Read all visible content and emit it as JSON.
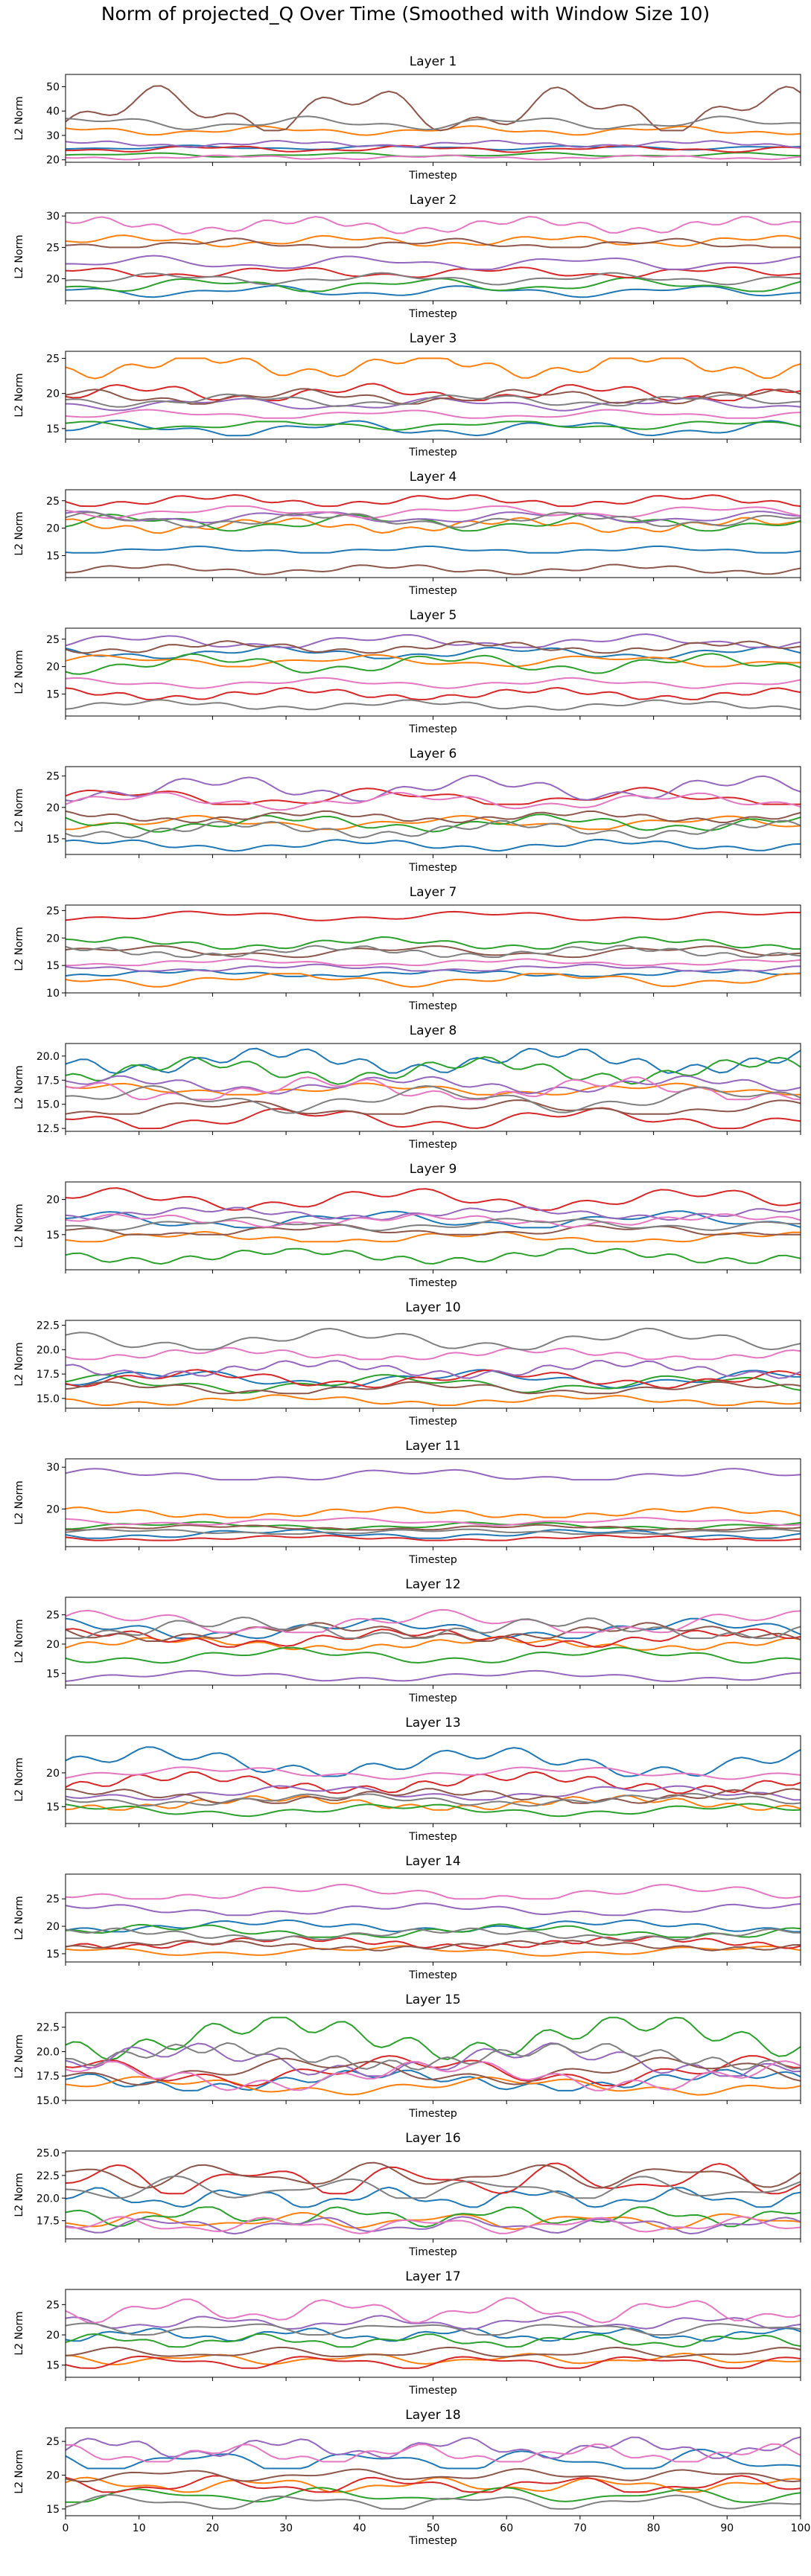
{
  "figure": {
    "title": "Norm of projected_Q Over Time (Smoothed with Window Size 10)"
  },
  "palette": [
    "#1f77b4",
    "#ff7f0e",
    "#2ca02c",
    "#d62728",
    "#9467bd",
    "#8c564b",
    "#e377c2",
    "#7f7f7f"
  ],
  "chart_data": [
    {
      "type": "line",
      "title": "Layer 1",
      "xlabel": "Timestep",
      "ylabel": "L2 Norm",
      "xlim": [
        0,
        100
      ],
      "ylim": [
        19,
        55
      ],
      "yticks": [
        20,
        30,
        40,
        50
      ],
      "xticks": [
        0,
        10,
        20,
        30,
        40,
        50,
        60,
        70,
        80,
        90,
        100
      ],
      "show_xticklabels": false,
      "series_levels": [
        25.0,
        32.0,
        22.0,
        24.5,
        26.5,
        40.0,
        21.0,
        35.0
      ],
      "series_ranges": [
        [
          24,
          26
        ],
        [
          30,
          34
        ],
        [
          21,
          23
        ],
        [
          23,
          26
        ],
        [
          25,
          28
        ],
        [
          32,
          54
        ],
        [
          20,
          22
        ],
        [
          32,
          38
        ]
      ]
    },
    {
      "type": "line",
      "title": "Layer 2",
      "xlabel": "Timestep",
      "ylabel": "L2 Norm",
      "xlim": [
        0,
        100
      ],
      "ylim": [
        16.5,
        30.5
      ],
      "yticks": [
        20,
        25,
        30
      ],
      "xticks": [
        0,
        10,
        20,
        30,
        40,
        50,
        60,
        70,
        80,
        90,
        100
      ],
      "show_xticklabels": false,
      "series_levels": [
        18.0,
        26.0,
        19.0,
        21.0,
        22.5,
        25.5,
        28.5,
        20.0
      ],
      "series_ranges": [
        [
          17,
          19
        ],
        [
          25,
          27
        ],
        [
          18,
          20.5
        ],
        [
          20,
          22
        ],
        [
          21.5,
          24
        ],
        [
          25,
          27
        ],
        [
          27,
          30
        ],
        [
          19,
          21
        ]
      ]
    },
    {
      "type": "line",
      "title": "Layer 3",
      "xlabel": "Timestep",
      "ylabel": "L2 Norm",
      "xlim": [
        0,
        100
      ],
      "ylim": [
        13.5,
        26
      ],
      "yticks": [
        15,
        20,
        25
      ],
      "xticks": [
        0,
        10,
        20,
        30,
        40,
        50,
        60,
        70,
        80,
        90,
        100
      ],
      "show_xticklabels": false,
      "series_levels": [
        15.0,
        24.0,
        15.5,
        20.0,
        18.5,
        19.5,
        17.0,
        19.0
      ],
      "series_ranges": [
        [
          14,
          16.5
        ],
        [
          21,
          25
        ],
        [
          14.5,
          16
        ],
        [
          19,
          22
        ],
        [
          17.5,
          19.5
        ],
        [
          18.5,
          21
        ],
        [
          16.5,
          18
        ],
        [
          18,
          20
        ]
      ]
    },
    {
      "type": "line",
      "title": "Layer 4",
      "xlabel": "Timestep",
      "ylabel": "L2 Norm",
      "xlim": [
        0,
        100
      ],
      "ylim": [
        11,
        27
      ],
      "yticks": [
        15,
        20,
        25
      ],
      "xticks": [
        0,
        10,
        20,
        30,
        40,
        50,
        60,
        70,
        80,
        90,
        100
      ],
      "show_xticklabels": false,
      "series_levels": [
        16.0,
        20.5,
        21.0,
        25.0,
        22.0,
        12.5,
        23.0,
        21.5
      ],
      "series_ranges": [
        [
          15.5,
          17
        ],
        [
          19,
          22
        ],
        [
          19.5,
          23
        ],
        [
          24,
          26.5
        ],
        [
          21,
          23.5
        ],
        [
          11.5,
          13.5
        ],
        [
          21.5,
          24
        ],
        [
          20,
          23
        ]
      ]
    },
    {
      "type": "line",
      "title": "Layer 5",
      "xlabel": "Timestep",
      "ylabel": "L2 Norm",
      "xlim": [
        0,
        100
      ],
      "ylim": [
        11,
        27
      ],
      "yticks": [
        15,
        20,
        25
      ],
      "xticks": [
        0,
        10,
        20,
        30,
        40,
        50,
        60,
        70,
        80,
        90,
        100
      ],
      "show_xticklabels": false,
      "series_levels": [
        22.5,
        21.0,
        20.5,
        15.0,
        24.5,
        23.5,
        17.0,
        13.0
      ],
      "series_ranges": [
        [
          21.5,
          24
        ],
        [
          20,
          22.5
        ],
        [
          18.5,
          22.5
        ],
        [
          14,
          16.5
        ],
        [
          23.5,
          26.5
        ],
        [
          22.5,
          25
        ],
        [
          16,
          18
        ],
        [
          12,
          14
        ]
      ]
    },
    {
      "type": "line",
      "title": "Layer 6",
      "xlabel": "Timestep",
      "ylabel": "L2 Norm",
      "xlim": [
        0,
        100
      ],
      "ylim": [
        12.5,
        26.5
      ],
      "yticks": [
        15,
        20,
        25
      ],
      "xticks": [
        0,
        10,
        20,
        30,
        40,
        50,
        60,
        70,
        80,
        90,
        100
      ],
      "show_xticklabels": false,
      "series_levels": [
        14.0,
        17.5,
        17.5,
        21.5,
        23.0,
        18.5,
        21.0,
        16.5
      ],
      "series_ranges": [
        [
          13,
          15
        ],
        [
          16.5,
          19
        ],
        [
          16,
          19
        ],
        [
          20.5,
          24
        ],
        [
          21,
          25.5
        ],
        [
          17.5,
          19.5
        ],
        [
          19.5,
          22.5
        ],
        [
          15,
          18
        ]
      ]
    },
    {
      "type": "line",
      "title": "Layer 7",
      "xlabel": "Timestep",
      "ylabel": "L2 Norm",
      "xlim": [
        0,
        100
      ],
      "ylim": [
        10,
        26
      ],
      "yticks": [
        10,
        15,
        20,
        25
      ],
      "xticks": [
        0,
        10,
        20,
        30,
        40,
        50,
        60,
        70,
        80,
        90,
        100
      ],
      "show_xticklabels": false,
      "series_levels": [
        13.5,
        12.5,
        19.0,
        24.0,
        14.5,
        17.5,
        15.5,
        17.5
      ],
      "series_ranges": [
        [
          13,
          14.5
        ],
        [
          10.5,
          13.5
        ],
        [
          18,
          20.5
        ],
        [
          23,
          25
        ],
        [
          14,
          15.5
        ],
        [
          16.5,
          19
        ],
        [
          15,
          16.5
        ],
        [
          16.5,
          19
        ]
      ]
    },
    {
      "type": "line",
      "title": "Layer 8",
      "xlabel": "Timestep",
      "ylabel": "L2 Norm",
      "xlim": [
        0,
        100
      ],
      "ylim": [
        12.2,
        21.3
      ],
      "yticks": [
        12.5,
        15.0,
        17.5,
        20.0
      ],
      "xticks": [
        0,
        10,
        20,
        30,
        40,
        50,
        60,
        70,
        80,
        90,
        100
      ],
      "show_xticklabels": false,
      "series_levels": [
        19.5,
        16.5,
        18.5,
        13.5,
        17.0,
        14.5,
        16.5,
        15.5
      ],
      "series_ranges": [
        [
          18,
          21
        ],
        [
          16,
          17.5
        ],
        [
          17,
          20
        ],
        [
          12.5,
          15
        ],
        [
          16,
          18
        ],
        [
          14,
          16
        ],
        [
          15.5,
          18.5
        ],
        [
          14,
          17
        ]
      ]
    },
    {
      "type": "line",
      "title": "Layer 9",
      "xlabel": "Timestep",
      "ylabel": "L2 Norm",
      "xlim": [
        0,
        100
      ],
      "ylim": [
        10,
        22.5
      ],
      "yticks": [
        15,
        20
      ],
      "xticks": [
        0,
        10,
        20,
        30,
        40,
        50,
        60,
        70,
        80,
        90,
        100
      ],
      "show_xticklabels": false,
      "series_levels": [
        17.0,
        14.5,
        12.0,
        20.0,
        18.0,
        15.5,
        17.0,
        16.5
      ],
      "series_ranges": [
        [
          16,
          19
        ],
        [
          14,
          16
        ],
        [
          10.5,
          13
        ],
        [
          18.5,
          22
        ],
        [
          17,
          19
        ],
        [
          15,
          17
        ],
        [
          16,
          18
        ],
        [
          15.5,
          17.5
        ]
      ]
    },
    {
      "type": "line",
      "title": "Layer 10",
      "xlabel": "Timestep",
      "ylabel": "L2 Norm",
      "xlim": [
        0,
        100
      ],
      "ylim": [
        14,
        23
      ],
      "yticks": [
        15.0,
        17.5,
        20.0,
        22.5
      ],
      "xticks": [
        0,
        10,
        20,
        30,
        40,
        50,
        60,
        70,
        80,
        90,
        100
      ],
      "show_xticklabels": false,
      "series_levels": [
        17.0,
        14.8,
        16.5,
        17.0,
        18.0,
        16.0,
        19.5,
        21.0
      ],
      "series_ranges": [
        [
          16,
          18
        ],
        [
          14.3,
          15.5
        ],
        [
          15.5,
          17.5
        ],
        [
          16,
          18
        ],
        [
          17,
          19
        ],
        [
          15.5,
          17
        ],
        [
          19,
          20.5
        ],
        [
          20,
          22.5
        ]
      ]
    },
    {
      "type": "line",
      "title": "Layer 11",
      "xlabel": "Timestep",
      "ylabel": "L2 Norm",
      "xlim": [
        0,
        100
      ],
      "ylim": [
        11,
        32
      ],
      "yticks": [
        20,
        30
      ],
      "xticks": [
        0,
        10,
        20,
        30,
        40,
        50,
        60,
        70,
        80,
        90,
        100
      ],
      "show_xticklabels": false,
      "series_levels": [
        14.0,
        19.0,
        16.0,
        13.0,
        28.0,
        15.5,
        17.0,
        14.5
      ],
      "series_ranges": [
        [
          13,
          15.5
        ],
        [
          18,
          21
        ],
        [
          15,
          17
        ],
        [
          12.5,
          14
        ],
        [
          27,
          30.5
        ],
        [
          15,
          16.5
        ],
        [
          16,
          18
        ],
        [
          14,
          15.5
        ]
      ]
    },
    {
      "type": "line",
      "title": "Layer 12",
      "xlabel": "Timestep",
      "ylabel": "L2 Norm",
      "xlim": [
        0,
        100
      ],
      "ylim": [
        13,
        28
      ],
      "yticks": [
        15,
        20,
        25
      ],
      "xticks": [
        0,
        10,
        20,
        30,
        40,
        50,
        60,
        70,
        80,
        90,
        100
      ],
      "show_xticklabels": false,
      "series_levels": [
        22.5,
        20.0,
        18.0,
        21.0,
        14.5,
        22.0,
        23.5,
        22.5
      ],
      "series_ranges": [
        [
          21,
          25
        ],
        [
          19,
          21.5
        ],
        [
          16.5,
          19.5
        ],
        [
          19.5,
          23
        ],
        [
          13.5,
          15.5
        ],
        [
          20.5,
          24
        ],
        [
          22,
          27
        ],
        [
          21,
          25.5
        ]
      ]
    },
    {
      "type": "line",
      "title": "Layer 13",
      "xlabel": "Timestep",
      "ylabel": "L2 Norm",
      "xlim": [
        0,
        100
      ],
      "ylim": [
        12.5,
        25.5
      ],
      "yticks": [
        15,
        20
      ],
      "xticks": [
        0,
        10,
        20,
        30,
        40,
        50,
        60,
        70,
        80,
        90,
        100
      ],
      "show_xticklabels": false,
      "series_levels": [
        21.5,
        15.5,
        14.5,
        18.5,
        17.0,
        16.5,
        20.0,
        16.0
      ],
      "series_ranges": [
        [
          19.5,
          24.5
        ],
        [
          14.5,
          17
        ],
        [
          13.5,
          15.5
        ],
        [
          17,
          20.5
        ],
        [
          16,
          18.5
        ],
        [
          15.5,
          18
        ],
        [
          19,
          21
        ],
        [
          15,
          17
        ]
      ]
    },
    {
      "type": "line",
      "title": "Layer 14",
      "xlabel": "Timestep",
      "ylabel": "L2 Norm",
      "xlim": [
        0,
        100
      ],
      "ylim": [
        13.5,
        29.5
      ],
      "yticks": [
        15,
        20,
        25
      ],
      "xticks": [
        0,
        10,
        20,
        30,
        40,
        50,
        60,
        70,
        80,
        90,
        100
      ],
      "show_xticklabels": false,
      "series_levels": [
        20.0,
        15.5,
        19.0,
        17.0,
        23.0,
        16.5,
        26.0,
        18.5
      ],
      "series_ranges": [
        [
          19,
          21.5
        ],
        [
          14.5,
          16.5
        ],
        [
          18,
          21
        ],
        [
          16,
          18.5
        ],
        [
          22,
          24.5
        ],
        [
          15.5,
          17.5
        ],
        [
          25,
          28.5
        ],
        [
          17.5,
          20
        ]
      ]
    },
    {
      "type": "line",
      "title": "Layer 15",
      "xlabel": "Timestep",
      "ylabel": "L2 Norm",
      "xlim": [
        0,
        100
      ],
      "ylim": [
        15,
        24
      ],
      "yticks": [
        15.0,
        17.5,
        20.0,
        22.5
      ],
      "xticks": [
        0,
        10,
        20,
        30,
        40,
        50,
        60,
        70,
        80,
        90,
        100
      ],
      "show_xticklabels": false,
      "series_levels": [
        17.0,
        16.5,
        21.5,
        18.0,
        19.0,
        18.0,
        17.5,
        19.5
      ],
      "series_ranges": [
        [
          16,
          18.5
        ],
        [
          15.5,
          17.5
        ],
        [
          18.5,
          23.5
        ],
        [
          16.5,
          20
        ],
        [
          17.5,
          21.5
        ],
        [
          16.5,
          19.5
        ],
        [
          16,
          19.5
        ],
        [
          18,
          21
        ]
      ]
    },
    {
      "type": "line",
      "title": "Layer 16",
      "xlabel": "Timestep",
      "ylabel": "L2 Norm",
      "xlim": [
        0,
        100
      ],
      "ylim": [
        15.5,
        25.2
      ],
      "yticks": [
        17.5,
        20.0,
        22.5,
        25.0
      ],
      "xticks": [
        0,
        10,
        20,
        30,
        40,
        50,
        60,
        70,
        80,
        90,
        100
      ],
      "show_xticklabels": false,
      "series_levels": [
        20.0,
        17.5,
        18.0,
        22.0,
        17.0,
        22.5,
        17.0,
        21.0
      ],
      "series_ranges": [
        [
          19,
          21.5
        ],
        [
          16.5,
          18.5
        ],
        [
          16.5,
          19
        ],
        [
          20.5,
          24.5
        ],
        [
          16,
          18
        ],
        [
          21,
          24
        ],
        [
          16,
          18
        ],
        [
          20,
          23
        ]
      ]
    },
    {
      "type": "line",
      "title": "Layer 17",
      "xlabel": "Timestep",
      "ylabel": "L2 Norm",
      "xlim": [
        0,
        100
      ],
      "ylim": [
        13,
        27.5
      ],
      "yticks": [
        15,
        20,
        25
      ],
      "xticks": [
        0,
        10,
        20,
        30,
        40,
        50,
        60,
        70,
        80,
        90,
        100
      ],
      "show_xticklabels": false,
      "series_levels": [
        20.0,
        16.0,
        19.0,
        15.5,
        22.0,
        17.0,
        24.0,
        21.0
      ],
      "series_ranges": [
        [
          19,
          21.5
        ],
        [
          15,
          17
        ],
        [
          18,
          20.5
        ],
        [
          14.5,
          17
        ],
        [
          21,
          23.5
        ],
        [
          16,
          18
        ],
        [
          22,
          26.5
        ],
        [
          20,
          22.5
        ]
      ]
    },
    {
      "type": "line",
      "title": "Layer 18",
      "xlabel": "Timestep",
      "ylabel": "L2 Norm",
      "xlim": [
        0,
        100
      ],
      "ylim": [
        14,
        27
      ],
      "yticks": [
        15,
        20,
        25
      ],
      "xticks": [
        0,
        10,
        20,
        30,
        40,
        50,
        60,
        70,
        80,
        90,
        100
      ],
      "show_xticklabels": true,
      "series_levels": [
        22.0,
        18.5,
        17.0,
        18.5,
        24.0,
        20.0,
        23.0,
        16.0
      ],
      "series_ranges": [
        [
          21,
          25
        ],
        [
          17.5,
          20
        ],
        [
          16,
          18.5
        ],
        [
          17.5,
          20.5
        ],
        [
          22.5,
          26
        ],
        [
          19,
          21
        ],
        [
          22,
          25.5
        ],
        [
          15,
          17.5
        ]
      ]
    }
  ]
}
